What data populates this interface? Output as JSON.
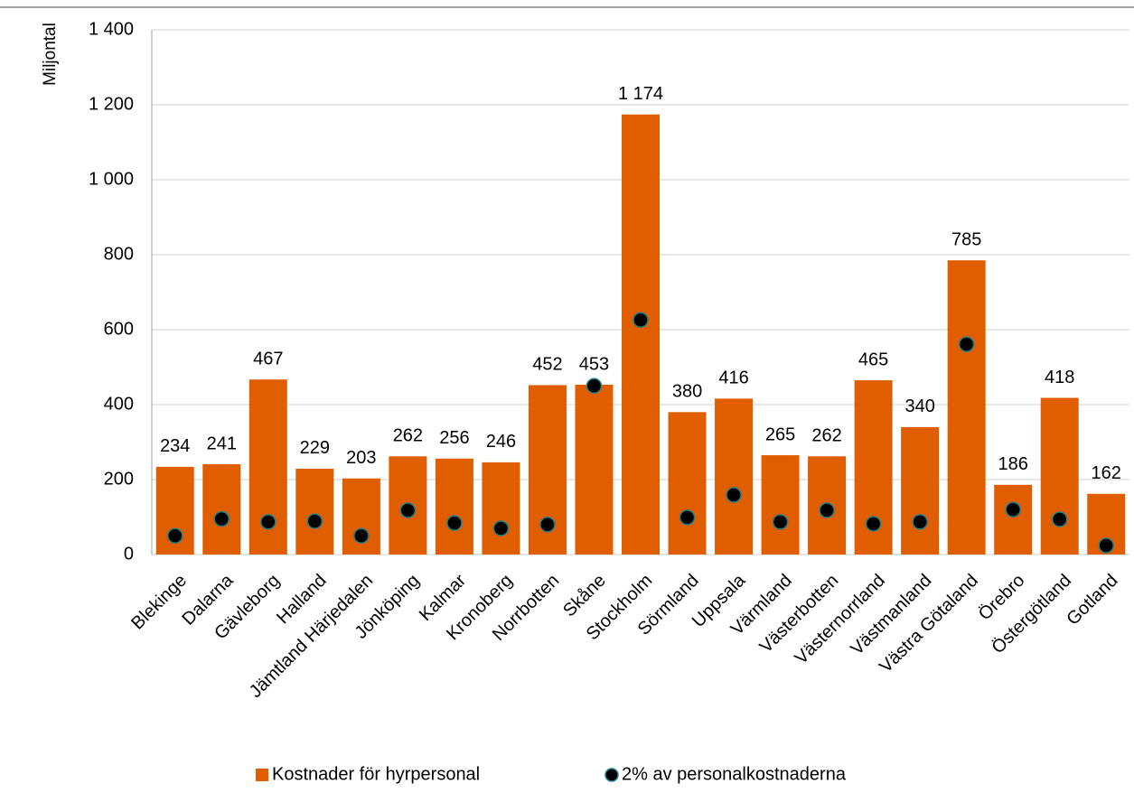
{
  "chart_data": {
    "type": "bar",
    "axis_label": "Miljontal",
    "categories": [
      "Blekinge",
      "Dalarna",
      "Gävleborg",
      "Halland",
      "Jämtland Härjedalen",
      "Jönköping",
      "Kalmar",
      "Kronoberg",
      "Norrbotten",
      "Skåne",
      "Stockholm",
      "Sörmland",
      "Uppsala",
      "Värmland",
      "Västerbotten",
      "Västernorrland",
      "Västmanland",
      "Västra Götaland",
      "Örebro",
      "Östergötland",
      "Gotland"
    ],
    "series": [
      {
        "name": "Kostnader för hyrpersonal",
        "type": "bar",
        "color": "#e05e00",
        "values": [
          234,
          241,
          467,
          229,
          203,
          262,
          256,
          246,
          452,
          453,
          1174,
          380,
          416,
          265,
          262,
          465,
          340,
          785,
          186,
          418,
          162
        ],
        "value_labels": [
          "234",
          "241",
          "467",
          "229",
          "203",
          "262",
          "256",
          "246",
          "452",
          "453",
          "1 174",
          "380",
          "416",
          "265",
          "262",
          "465",
          "340",
          "785",
          "186",
          "418",
          "162"
        ]
      },
      {
        "name": "2% av personalkostnaderna",
        "type": "scatter",
        "color": "#000000",
        "edge_color": "#1f7f8f",
        "values": [
          50,
          95,
          87,
          89,
          50,
          118,
          84,
          70,
          80,
          450,
          626,
          99,
          159,
          87,
          118,
          82,
          87,
          561,
          120,
          94,
          24
        ]
      }
    ],
    "ylim": [
      0,
      1400
    ],
    "yticks": [
      0,
      200,
      400,
      600,
      800,
      {
        "value": 1000,
        "label": "1 000"
      },
      {
        "value": 1200,
        "label": "1 200"
      },
      {
        "value": 1400,
        "label": "1 400"
      }
    ],
    "grid": true,
    "legend": "bottom"
  }
}
